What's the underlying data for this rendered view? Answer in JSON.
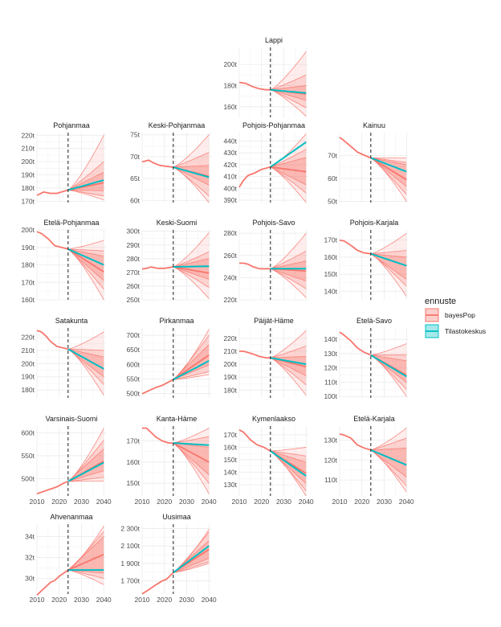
{
  "chart_data": {
    "type": "line",
    "description": "Population forecasts with uncertainty bands by region",
    "x_ticks": [
      2010,
      2020,
      2030,
      2040
    ],
    "xlim": [
      2010,
      2041
    ],
    "forecast_start": 2024,
    "colors": {
      "bayesPop": "#f8766d",
      "Tilastokeskus": "#00bfc4"
    },
    "legend": {
      "title": "ennuste",
      "entries": [
        {
          "key": "bayesPop",
          "label": "bayesPop"
        },
        {
          "key": "Tilastokeskus",
          "label": "Tilastokeskus"
        }
      ]
    },
    "panels": [
      {
        "title": "Lappi",
        "ylim": [
          150,
          216
        ],
        "yticks": [
          160,
          180,
          200
        ],
        "ytick_labels": [
          "160t",
          "180t",
          "200t"
        ],
        "hist": [
          [
            2010,
            183
          ],
          [
            2013,
            182
          ],
          [
            2016,
            179
          ],
          [
            2019,
            177
          ],
          [
            2022,
            176
          ],
          [
            2024,
            176
          ]
        ],
        "bayes_median_end": 172,
        "bayes_50": [
          166,
          180
        ],
        "bayes_95": [
          159,
          190
        ],
        "bayes_outer": [
          151,
          212
        ],
        "stat_end": 173
      },
      {
        "title": "Pohjanmaa",
        "ylim": [
          169,
          222
        ],
        "yticks": [
          170,
          180,
          190,
          200,
          210,
          220
        ],
        "ytick_labels": [
          "170t",
          "180t",
          "190t",
          "200t",
          "210t",
          "220t"
        ],
        "hist": [
          [
            2010,
            174.5
          ],
          [
            2013,
            177
          ],
          [
            2016,
            176
          ],
          [
            2019,
            176
          ],
          [
            2021,
            177
          ],
          [
            2024,
            178.5
          ]
        ],
        "bayes_median_end": 184,
        "bayes_50": [
          178,
          192
        ],
        "bayes_95": [
          174,
          200
        ],
        "bayes_outer": [
          171,
          220
        ],
        "stat_end": 186
      },
      {
        "title": "Keski-Pohjanmaa",
        "ylim": [
          59.5,
          75.5
        ],
        "yticks": [
          60,
          65,
          70,
          75
        ],
        "ytick_labels": [
          "60t",
          "65t",
          "70t",
          "75t"
        ],
        "hist": [
          [
            2010,
            68.8
          ],
          [
            2013,
            69.2
          ],
          [
            2015,
            68.6
          ],
          [
            2018,
            68.0
          ],
          [
            2021,
            67.8
          ],
          [
            2024,
            67.6
          ]
        ],
        "bayes_median_end": 65.5,
        "bayes_50": [
          63.5,
          68
        ],
        "bayes_95": [
          61,
          71
        ],
        "bayes_outer": [
          59.5,
          75
        ],
        "stat_end": 65.3
      },
      {
        "title": "Pohjois-Pohjanmaa",
        "ylim": [
          388,
          447
        ],
        "yticks": [
          390,
          400,
          410,
          420,
          430,
          440
        ],
        "ytick_labels": [
          "390t",
          "400t",
          "410t",
          "420t",
          "430t",
          "440t"
        ],
        "hist": [
          [
            2010,
            401
          ],
          [
            2012,
            407
          ],
          [
            2014,
            411
          ],
          [
            2017,
            413
          ],
          [
            2020,
            416
          ],
          [
            2024,
            418
          ]
        ],
        "bayes_median_end": 414,
        "bayes_50": [
          403,
          426
        ],
        "bayes_95": [
          396,
          433
        ],
        "bayes_outer": [
          388,
          446
        ],
        "stat_end": 439
      },
      {
        "title": "Kainuu",
        "ylim": [
          49.5,
          80
        ],
        "yticks": [
          50,
          60,
          70
        ],
        "ytick_labels": [
          "50t",
          "60t",
          "70t"
        ],
        "hist": [
          [
            2010,
            78
          ],
          [
            2012,
            76.5
          ],
          [
            2015,
            74
          ],
          [
            2018,
            71.5
          ],
          [
            2021,
            70.2
          ],
          [
            2024,
            69
          ]
        ],
        "bayes_median_end": 59.5,
        "bayes_50": [
          56.5,
          66
        ],
        "bayes_95": [
          53,
          67
        ],
        "bayes_outer": [
          50,
          69
        ],
        "stat_end": 63
      },
      {
        "title": "Etelä-Pohjanmaa",
        "ylim": [
          160,
          200
        ],
        "yticks": [
          160,
          170,
          180,
          190,
          200
        ],
        "ytick_labels": [
          "160t",
          "170t",
          "180t",
          "190t",
          "200t"
        ],
        "hist": [
          [
            2010,
            199
          ],
          [
            2012,
            198
          ],
          [
            2015,
            195
          ],
          [
            2018,
            191
          ],
          [
            2021,
            190
          ],
          [
            2024,
            189
          ]
        ],
        "bayes_median_end": 176,
        "bayes_50": [
          171,
          185
        ],
        "bayes_95": [
          166,
          188
        ],
        "bayes_outer": [
          160,
          194
        ],
        "stat_end": 180
      },
      {
        "title": "Keski-Suomi",
        "ylim": [
          250,
          301
        ],
        "yticks": [
          250,
          260,
          270,
          280,
          290,
          300
        ],
        "ytick_labels": [
          "250t",
          "260t",
          "270t",
          "280t",
          "290t",
          "300t"
        ],
        "hist": [
          [
            2010,
            272.5
          ],
          [
            2012,
            273
          ],
          [
            2014,
            274
          ],
          [
            2017,
            273
          ],
          [
            2020,
            273
          ],
          [
            2024,
            274
          ]
        ],
        "bayes_median_end": 269.5,
        "bayes_50": [
          265,
          280
        ],
        "bayes_95": [
          259,
          285
        ],
        "bayes_outer": [
          251,
          299
        ],
        "stat_end": 274.5
      },
      {
        "title": "Pohjois-Savo",
        "ylim": [
          220,
          283
        ],
        "yticks": [
          220,
          240,
          260,
          280
        ],
        "ytick_labels": [
          "220t",
          "240t",
          "260t",
          "280t"
        ],
        "hist": [
          [
            2010,
            253
          ],
          [
            2012,
            253
          ],
          [
            2014,
            252
          ],
          [
            2016,
            250
          ],
          [
            2019,
            248
          ],
          [
            2022,
            248
          ],
          [
            2024,
            248
          ]
        ],
        "bayes_median_end": 246,
        "bayes_50": [
          237,
          255
        ],
        "bayes_95": [
          230,
          264
        ],
        "bayes_outer": [
          222,
          280
        ],
        "stat_end": 248
      },
      {
        "title": "Pohjois-Karjala",
        "ylim": [
          135,
          176
        ],
        "yticks": [
          140,
          150,
          160,
          170
        ],
        "ytick_labels": [
          "140t",
          "150t",
          "160t",
          "170t"
        ],
        "hist": [
          [
            2010,
            170
          ],
          [
            2012,
            169.5
          ],
          [
            2015,
            167
          ],
          [
            2018,
            164
          ],
          [
            2021,
            162.5
          ],
          [
            2024,
            162
          ]
        ],
        "bayes_median_end": 155,
        "bayes_50": [
          147,
          160
        ],
        "bayes_95": [
          143,
          164
        ],
        "bayes_outer": [
          137,
          174
        ],
        "stat_end": 155
      },
      {
        "title": "Satakunta",
        "ylim": [
          174,
          227
        ],
        "yticks": [
          180,
          190,
          200,
          210,
          220
        ],
        "ytick_labels": [
          "180t",
          "190t",
          "200t",
          "210t",
          "220t"
        ],
        "hist": [
          [
            2010,
            225
          ],
          [
            2012,
            224
          ],
          [
            2014,
            221
          ],
          [
            2016,
            217
          ],
          [
            2019,
            213
          ],
          [
            2024,
            211
          ]
        ],
        "bayes_median_end": 196,
        "bayes_50": [
          190,
          205
        ],
        "bayes_95": [
          184,
          210
        ],
        "bayes_outer": [
          176,
          224
        ],
        "stat_end": 196
      },
      {
        "title": "Pirkanmaa",
        "ylim": [
          485,
          725
        ],
        "yticks": [
          500,
          550,
          600,
          650,
          700
        ],
        "ytick_labels": [
          "500t",
          "550t",
          "600t",
          "650t",
          "700t"
        ],
        "hist": [
          [
            2010,
            499
          ],
          [
            2013,
            510
          ],
          [
            2016,
            520
          ],
          [
            2019,
            528
          ],
          [
            2022,
            540
          ],
          [
            2024,
            548
          ]
        ],
        "bayes_median_end": 632,
        "bayes_50": [
          598,
          668
        ],
        "bayes_95": [
          575,
          700
        ],
        "bayes_outer": [
          565,
          720
        ],
        "stat_end": 612
      },
      {
        "title": "Päijät-Häme",
        "ylim": [
          174,
          228
        ],
        "yticks": [
          180,
          190,
          200,
          210,
          220
        ],
        "ytick_labels": [
          "180t",
          "190t",
          "200t",
          "210t",
          "220t"
        ],
        "hist": [
          [
            2010,
            210
          ],
          [
            2012,
            210
          ],
          [
            2014,
            209
          ],
          [
            2016,
            208
          ],
          [
            2019,
            206
          ],
          [
            2022,
            205
          ],
          [
            2024,
            205
          ]
        ],
        "bayes_median_end": 198,
        "bayes_50": [
          191,
          206
        ],
        "bayes_95": [
          184,
          214
        ],
        "bayes_outer": [
          176,
          226
        ],
        "stat_end": 200
      },
      {
        "title": "Etelä-Savo",
        "ylim": [
          99,
          148
        ],
        "yticks": [
          100,
          110,
          120,
          130,
          140
        ],
        "ytick_labels": [
          "100t",
          "110t",
          "120t",
          "130t",
          "140t"
        ],
        "hist": [
          [
            2010,
            145
          ],
          [
            2012,
            143
          ],
          [
            2015,
            139
          ],
          [
            2018,
            134
          ],
          [
            2021,
            131
          ],
          [
            2024,
            129
          ]
        ],
        "bayes_median_end": 115,
        "bayes_50": [
          110,
          125
        ],
        "bayes_95": [
          105,
          129
        ],
        "bayes_outer": [
          100,
          137
        ],
        "stat_end": 114
      },
      {
        "title": "Varsinais-Suomi",
        "ylim": [
          462,
          615
        ],
        "yticks": [
          500,
          550,
          600
        ],
        "ytick_labels": [
          "500t",
          "550t",
          "600t"
        ],
        "hist": [
          [
            2010,
            467
          ],
          [
            2013,
            472
          ],
          [
            2016,
            477
          ],
          [
            2019,
            482
          ],
          [
            2022,
            490
          ],
          [
            2024,
            494
          ]
        ],
        "bayes_median_end": 538,
        "bayes_50": [
          517,
          565
        ],
        "bayes_95": [
          503,
          584
        ],
        "bayes_outer": [
          495,
          610
        ],
        "stat_end": 535
      },
      {
        "title": "Kanta-Häme",
        "ylim": [
          144,
          177
        ],
        "yticks": [
          150,
          160,
          170
        ],
        "ytick_labels": [
          "150t",
          "160t",
          "170t"
        ],
        "hist": [
          [
            2010,
            176
          ],
          [
            2012,
            176
          ],
          [
            2014,
            174
          ],
          [
            2016,
            172
          ],
          [
            2019,
            170
          ],
          [
            2022,
            169
          ],
          [
            2024,
            169
          ]
        ],
        "bayes_median_end": 160,
        "bayes_50": [
          154,
          167
        ],
        "bayes_95": [
          150,
          172
        ],
        "bayes_outer": [
          145,
          176
        ],
        "stat_end": 168
      },
      {
        "title": "Kymenlaakso",
        "ylim": [
          121,
          177
        ],
        "yticks": [
          130,
          140,
          150,
          160,
          170
        ],
        "ytick_labels": [
          "130t",
          "140t",
          "150t",
          "160t",
          "170t"
        ],
        "hist": [
          [
            2010,
            174
          ],
          [
            2012,
            172
          ],
          [
            2015,
            166
          ],
          [
            2018,
            162
          ],
          [
            2021,
            160
          ],
          [
            2024,
            157
          ]
        ],
        "bayes_median_end": 139,
        "bayes_50": [
          131,
          148
        ],
        "bayes_95": [
          125,
          153
        ],
        "bayes_outer": [
          121,
          160
        ],
        "stat_end": 137
      },
      {
        "title": "Etelä-Karjala",
        "ylim": [
          102,
          137
        ],
        "yticks": [
          110,
          120,
          130
        ],
        "ytick_labels": [
          "110t",
          "120t",
          "130t"
        ],
        "hist": [
          [
            2010,
            133
          ],
          [
            2012,
            132.5
          ],
          [
            2015,
            131
          ],
          [
            2018,
            127.5
          ],
          [
            2021,
            126
          ],
          [
            2024,
            125
          ]
        ],
        "bayes_median_end": 117.5,
        "bayes_50": [
          111.5,
          126
        ],
        "bayes_95": [
          107,
          131
        ],
        "bayes_outer": [
          104,
          136
        ],
        "stat_end": 117.5
      },
      {
        "title": "Ahvenanmaa",
        "ylim": [
          28.5,
          35.2
        ],
        "yticks": [
          30,
          32,
          34
        ],
        "ytick_labels": [
          "30t",
          "32t",
          "34t"
        ],
        "hist": [
          [
            2010,
            28.4
          ],
          [
            2012,
            28.8
          ],
          [
            2014,
            29.2
          ],
          [
            2016,
            29.6
          ],
          [
            2018,
            29.8
          ],
          [
            2020,
            30.2
          ],
          [
            2022,
            30.5
          ],
          [
            2024,
            30.8
          ]
        ],
        "bayes_median_end": 32.3,
        "bayes_50": [
          30.5,
          34.0
        ],
        "bayes_95": [
          30.0,
          34.5
        ],
        "bayes_outer": [
          29.4,
          35.0
        ],
        "stat_end": 30.8
      },
      {
        "title": "Uusimaa",
        "ylim": [
          1550,
          2350
        ],
        "yticks": [
          1700,
          1900,
          2100,
          2300
        ],
        "ytick_labels": [
          "1 700t",
          "1 900t",
          "2 100t",
          "2 300t"
        ],
        "hist": [
          [
            2010,
            1552
          ],
          [
            2013,
            1600
          ],
          [
            2016,
            1652
          ],
          [
            2019,
            1700
          ],
          [
            2021,
            1720
          ],
          [
            2024,
            1795
          ]
        ],
        "bayes_median_end": 2060,
        "bayes_50": [
          1960,
          2160
        ],
        "bayes_95": [
          1920,
          2260
        ],
        "bayes_outer": [
          1900,
          2290
        ],
        "stat_end": 2100
      }
    ]
  }
}
